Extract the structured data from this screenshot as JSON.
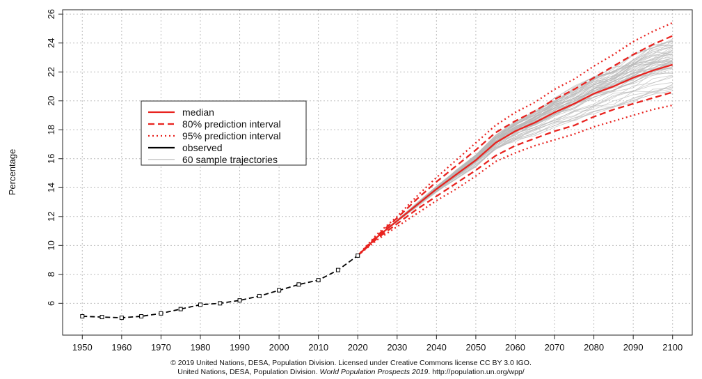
{
  "chart_data": {
    "type": "line",
    "title": "",
    "xlabel": "",
    "ylabel": "Percentage",
    "xlim": [
      1945,
      2105
    ],
    "ylim": [
      3.8,
      26.3
    ],
    "x_ticks": [
      1950,
      1960,
      1970,
      1980,
      1990,
      2000,
      2010,
      2020,
      2030,
      2040,
      2050,
      2060,
      2070,
      2080,
      2090,
      2100
    ],
    "y_ticks": [
      6,
      8,
      10,
      12,
      14,
      16,
      18,
      20,
      22,
      24,
      26
    ],
    "grid": true,
    "legend_position": "upper-left",
    "legend": [
      {
        "label": "median",
        "style": "solid",
        "color": "#e8231f"
      },
      {
        "label": "80% prediction interval",
        "style": "dashed",
        "color": "#e8231f"
      },
      {
        "label": "95% prediction interval",
        "style": "dotted",
        "color": "#e8231f"
      },
      {
        "label": "observed",
        "style": "solid",
        "color": "#000000"
      },
      {
        "label": "60 sample trajectories",
        "style": "solid",
        "color": "#bbbbbb"
      }
    ],
    "series": [
      {
        "name": "observed",
        "x": [
          1950,
          1955,
          1960,
          1965,
          1970,
          1975,
          1980,
          1985,
          1990,
          1995,
          2000,
          2005,
          2010,
          2015,
          2020
        ],
        "values": [
          5.1,
          5.05,
          5.0,
          5.1,
          5.3,
          5.6,
          5.9,
          6.0,
          6.2,
          6.5,
          6.9,
          7.3,
          7.6,
          8.3,
          9.3
        ]
      },
      {
        "name": "median",
        "x": [
          2020,
          2025,
          2030,
          2035,
          2040,
          2045,
          2050,
          2055,
          2060,
          2065,
          2070,
          2075,
          2080,
          2085,
          2090,
          2095,
          2100
        ],
        "values": [
          9.3,
          10.6,
          11.7,
          12.8,
          13.9,
          14.9,
          15.9,
          17.1,
          17.9,
          18.5,
          19.2,
          19.8,
          20.5,
          21.0,
          21.6,
          22.1,
          22.5
        ]
      },
      {
        "name": "80% prediction interval (upper)",
        "x": [
          2020,
          2025,
          2030,
          2035,
          2040,
          2045,
          2050,
          2055,
          2060,
          2065,
          2070,
          2075,
          2080,
          2085,
          2090,
          2095,
          2100
        ],
        "values": [
          9.3,
          10.7,
          11.9,
          13.2,
          14.4,
          15.5,
          16.6,
          17.8,
          18.6,
          19.3,
          20.1,
          20.8,
          21.6,
          22.4,
          23.2,
          23.9,
          24.5
        ]
      },
      {
        "name": "80% prediction interval (lower)",
        "x": [
          2020,
          2025,
          2030,
          2035,
          2040,
          2045,
          2050,
          2055,
          2060,
          2065,
          2070,
          2075,
          2080,
          2085,
          2090,
          2095,
          2100
        ],
        "values": [
          9.3,
          10.5,
          11.5,
          12.5,
          13.4,
          14.3,
          15.2,
          16.2,
          16.9,
          17.4,
          17.9,
          18.3,
          18.9,
          19.4,
          19.8,
          20.2,
          20.6
        ]
      },
      {
        "name": "95% prediction interval (upper)",
        "x": [
          2020,
          2025,
          2030,
          2035,
          2040,
          2045,
          2050,
          2055,
          2060,
          2065,
          2070,
          2075,
          2080,
          2085,
          2090,
          2095,
          2100
        ],
        "values": [
          9.3,
          10.8,
          12.0,
          13.4,
          14.7,
          15.9,
          17.1,
          18.3,
          19.2,
          19.9,
          20.8,
          21.5,
          22.4,
          23.2,
          24.1,
          24.8,
          25.4
        ]
      },
      {
        "name": "95% prediction interval (lower)",
        "x": [
          2020,
          2025,
          2030,
          2035,
          2040,
          2045,
          2050,
          2055,
          2060,
          2065,
          2070,
          2075,
          2080,
          2085,
          2090,
          2095,
          2100
        ],
        "values": [
          9.3,
          10.4,
          11.3,
          12.2,
          13.1,
          13.9,
          14.8,
          15.8,
          16.4,
          16.9,
          17.3,
          17.7,
          18.2,
          18.6,
          19.0,
          19.4,
          19.7
        ]
      }
    ],
    "sample_trajectories": {
      "count": 60,
      "x": [
        2020,
        2025,
        2030,
        2035,
        2040,
        2045,
        2050,
        2055,
        2060,
        2065,
        2070,
        2075,
        2080,
        2085,
        2090,
        2095,
        2100
      ]
    },
    "annotations": [
      "© 2019 United Nations, DESA, Population Division. Licensed under Creative Commons license CC BY 3.0 IGO.",
      "United Nations, DESA, Population Division.",
      "World Population Prospects 2019",
      ". http://population.un.org/wpp/"
    ]
  },
  "colors": {
    "median": "#e8231f",
    "observed": "#000000",
    "trajectory": "#b8b8b8",
    "grid": "#bdbdbd",
    "axis": "#222222"
  }
}
